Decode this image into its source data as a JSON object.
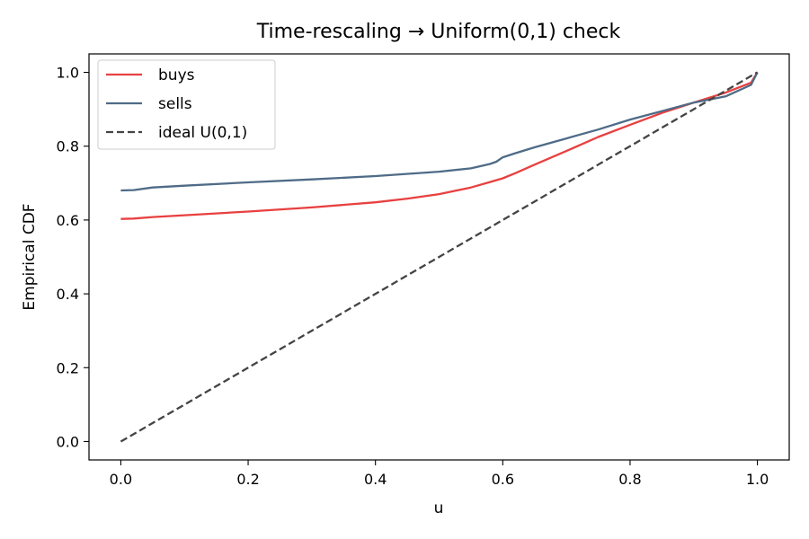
{
  "chart_data": {
    "type": "line",
    "title": "Time-rescaling → Uniform(0,1) check",
    "xlabel": "u",
    "ylabel": "Empirical CDF",
    "xlim": [
      -0.05,
      1.05
    ],
    "ylim": [
      -0.05,
      1.05
    ],
    "xticks": [
      "0.0",
      "0.2",
      "0.4",
      "0.6",
      "0.8",
      "1.0"
    ],
    "yticks": [
      "0.0",
      "0.2",
      "0.4",
      "0.6",
      "0.8",
      "1.0"
    ],
    "grid": false,
    "legend_position": "top-left",
    "series": [
      {
        "name": "buys",
        "color": "#e84040",
        "style": "solid",
        "x": [
          0.0,
          0.02,
          0.05,
          0.1,
          0.2,
          0.3,
          0.4,
          0.45,
          0.5,
          0.55,
          0.58,
          0.6,
          0.62,
          0.65,
          0.7,
          0.75,
          0.8,
          0.85,
          0.9,
          0.95,
          0.99,
          1.0
        ],
        "y": [
          0.603,
          0.604,
          0.608,
          0.613,
          0.623,
          0.634,
          0.648,
          0.658,
          0.67,
          0.688,
          0.703,
          0.713,
          0.727,
          0.75,
          0.787,
          0.825,
          0.858,
          0.89,
          0.918,
          0.945,
          0.972,
          1.0
        ]
      },
      {
        "name": "sells",
        "color": "#4f6b87",
        "style": "solid",
        "x": [
          0.0,
          0.02,
          0.05,
          0.1,
          0.2,
          0.3,
          0.4,
          0.5,
          0.55,
          0.58,
          0.59,
          0.6,
          0.62,
          0.65,
          0.7,
          0.75,
          0.8,
          0.85,
          0.9,
          0.95,
          0.99,
          1.0
        ],
        "y": [
          0.68,
          0.681,
          0.688,
          0.693,
          0.702,
          0.71,
          0.719,
          0.731,
          0.74,
          0.752,
          0.758,
          0.77,
          0.781,
          0.797,
          0.821,
          0.845,
          0.872,
          0.895,
          0.918,
          0.935,
          0.966,
          1.0
        ]
      },
      {
        "name": "ideal U(0,1)",
        "color": "#444444",
        "style": "dashed",
        "x": [
          0.0,
          1.0
        ],
        "y": [
          0.0,
          1.0
        ]
      }
    ]
  }
}
